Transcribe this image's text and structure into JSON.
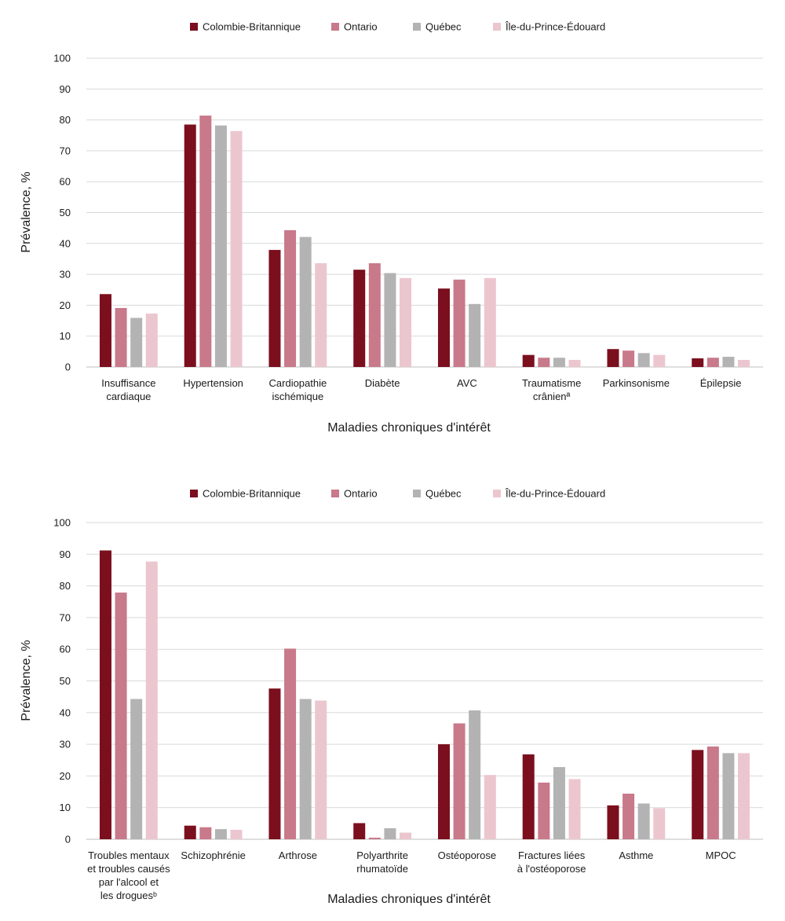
{
  "colors": {
    "Colombie-Britannique": "#7b0f1e",
    "Ontario": "#c8798a",
    "Québec": "#b3b3b3",
    "Île-du-Prince-Édouard": "#ecc6cf"
  },
  "chart_data": [
    {
      "type": "bar",
      "ylabel": "Prévalence, %",
      "xlabel": "Maladies chroniques d'intérêt",
      "ylim": [
        0,
        100
      ],
      "yticks": [
        0,
        10,
        20,
        30,
        40,
        50,
        60,
        70,
        80,
        90,
        100
      ],
      "grid": true,
      "legend": "top-center",
      "categories": [
        [
          "Insuffisance",
          "cardiaque"
        ],
        [
          "Hypertension"
        ],
        [
          "Cardiopathie",
          "ischémique"
        ],
        [
          "Diabète"
        ],
        [
          "AVC"
        ],
        [
          "Traumatisme",
          "crânienª"
        ],
        [
          "Parkinsonisme"
        ],
        [
          "Épilepsie"
        ]
      ],
      "series": [
        {
          "name": "Colombie-Britannique",
          "values": [
            23.6,
            78.5,
            37.9,
            31.5,
            25.4,
            3.9,
            5.8,
            2.8
          ]
        },
        {
          "name": "Ontario",
          "values": [
            19.1,
            81.4,
            44.3,
            33.6,
            28.3,
            3.0,
            5.3,
            3.0
          ]
        },
        {
          "name": "Québec",
          "values": [
            15.9,
            78.2,
            42.1,
            30.4,
            20.4,
            3.0,
            4.5,
            3.3
          ]
        },
        {
          "name": "Île-du-Prince-Édouard",
          "values": [
            17.3,
            76.4,
            33.6,
            28.8,
            28.8,
            2.3,
            3.9,
            2.3
          ]
        }
      ]
    },
    {
      "type": "bar",
      "ylabel": "Prévalence, %",
      "xlabel": "Maladies chroniques d'intérêt",
      "ylim": [
        0,
        100
      ],
      "yticks": [
        0,
        10,
        20,
        30,
        40,
        50,
        60,
        70,
        80,
        90,
        100
      ],
      "grid": true,
      "legend": "top-center",
      "categories": [
        [
          "Troubles mentaux",
          "et troubles causés",
          "par l'alcool et",
          "les droguesᵇ"
        ],
        [
          "Schizophrénie"
        ],
        [
          "Arthrose"
        ],
        [
          "Polyarthrite",
          "rhumatoïde"
        ],
        [
          "Ostéoporose"
        ],
        [
          "Fractures liées",
          "à l'ostéoporose"
        ],
        [
          "Asthme"
        ],
        [
          "MPOC"
        ]
      ],
      "series": [
        {
          "name": "Colombie-Britannique",
          "values": [
            91.2,
            4.3,
            47.6,
            5.1,
            30.0,
            26.8,
            10.7,
            28.2
          ]
        },
        {
          "name": "Ontario",
          "values": [
            77.9,
            3.8,
            60.2,
            0.5,
            36.6,
            17.9,
            14.4,
            29.3
          ]
        },
        {
          "name": "Québec",
          "values": [
            44.3,
            3.2,
            44.3,
            3.5,
            40.7,
            22.8,
            11.3,
            27.2
          ]
        },
        {
          "name": "Île-du-Prince-Édouard",
          "values": [
            87.7,
            3.0,
            43.8,
            2.1,
            20.3,
            19.0,
            9.8,
            27.2
          ]
        }
      ]
    }
  ]
}
